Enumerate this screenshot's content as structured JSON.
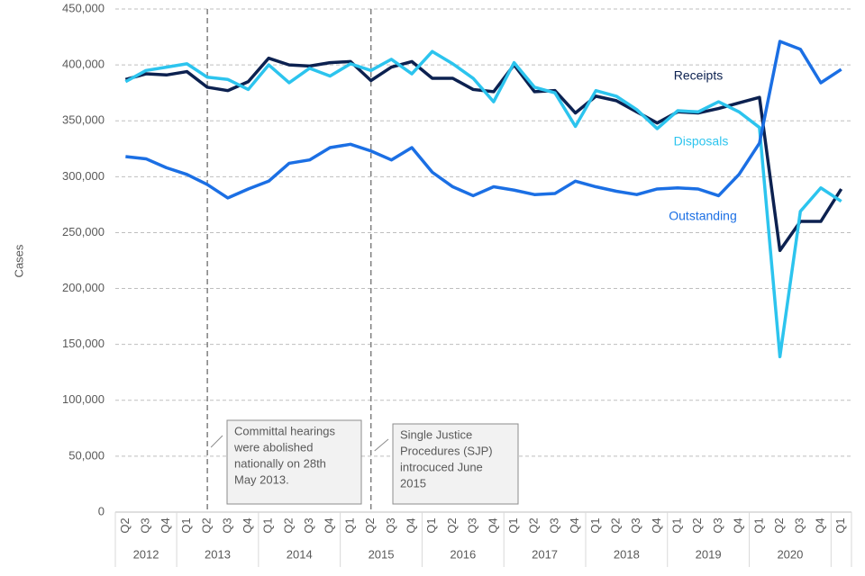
{
  "chart_data": {
    "type": "line",
    "y_label": "Cases",
    "year_groups": [
      {
        "label": "2012",
        "quarters": [
          "Q2",
          "Q3",
          "Q4"
        ]
      },
      {
        "label": "2013",
        "quarters": [
          "Q1",
          "Q2",
          "Q3",
          "Q4"
        ]
      },
      {
        "label": "2014",
        "quarters": [
          "Q1",
          "Q2",
          "Q3",
          "Q4"
        ]
      },
      {
        "label": "2015",
        "quarters": [
          "Q1",
          "Q2",
          "Q3",
          "Q4"
        ]
      },
      {
        "label": "2016",
        "quarters": [
          "Q1",
          "Q2",
          "Q3",
          "Q4"
        ]
      },
      {
        "label": "2017",
        "quarters": [
          "Q1",
          "Q2",
          "Q3",
          "Q4"
        ]
      },
      {
        "label": "2018",
        "quarters": [
          "Q1",
          "Q2",
          "Q3",
          "Q4"
        ]
      },
      {
        "label": "2019",
        "quarters": [
          "Q1",
          "Q2",
          "Q3",
          "Q4"
        ]
      },
      {
        "label": "2020",
        "quarters": [
          "Q1",
          "Q2",
          "Q3",
          "Q4"
        ]
      },
      {
        "label": null,
        "quarters": [
          "Q1"
        ]
      }
    ],
    "series": [
      {
        "name": "Receipts",
        "color": "#0c2150",
        "values": [
          387000,
          392000,
          391000,
          394000,
          380000,
          377000,
          385000,
          406000,
          400000,
          399000,
          402000,
          403000,
          386000,
          398000,
          403000,
          388000,
          388000,
          378000,
          376000,
          400000,
          376000,
          377000,
          357000,
          372000,
          368000,
          358000,
          348000,
          358000,
          357000,
          361000,
          366000,
          371000,
          234000,
          260000,
          260000,
          289000
        ]
      },
      {
        "name": "Disposals",
        "color": "#2cc4ee",
        "values": [
          385000,
          395000,
          398000,
          401000,
          389000,
          387000,
          378000,
          400000,
          384000,
          397000,
          390000,
          401000,
          395000,
          405000,
          392000,
          412000,
          401000,
          388000,
          367000,
          402000,
          380000,
          375000,
          345000,
          377000,
          372000,
          360000,
          343000,
          359000,
          358000,
          367000,
          358000,
          344000,
          139000,
          269000,
          290000,
          278000
        ]
      },
      {
        "name": "Outstanding",
        "color": "#1b6fe4",
        "values": [
          318000,
          316000,
          308000,
          302000,
          293000,
          281000,
          289000,
          296000,
          312000,
          315000,
          326000,
          329000,
          323000,
          315000,
          326000,
          304000,
          291000,
          283000,
          291000,
          288000,
          284000,
          285000,
          296000,
          291000,
          287000,
          284000,
          289000,
          290000,
          289000,
          283000,
          302000,
          330000,
          421000,
          414000,
          384000,
          396000
        ]
      }
    ],
    "ylim": [
      0,
      450000
    ],
    "yticks": [
      0,
      {
        "value": 50000,
        "label": "50,000"
      },
      {
        "value": 100000,
        "label": "100,000"
      },
      {
        "value": 150000,
        "label": "150,000"
      },
      {
        "value": 200000,
        "label": "200,000"
      },
      {
        "value": 250000,
        "label": "250,000"
      },
      {
        "value": 300000,
        "label": "300,000"
      },
      {
        "value": 350000,
        "label": "350,000"
      },
      {
        "value": 400000,
        "label": "400,000"
      },
      {
        "value": 450000,
        "label": "450,000"
      }
    ],
    "grid": true,
    "annotations": [
      {
        "lines": [
          "Committal hearings",
          "were abolished",
          "nationally on 28th",
          "May 2013."
        ]
      },
      {
        "lines": [
          "Single Justice",
          "Procedures (SJP)",
          "introcuced June",
          "2015"
        ]
      }
    ]
  }
}
